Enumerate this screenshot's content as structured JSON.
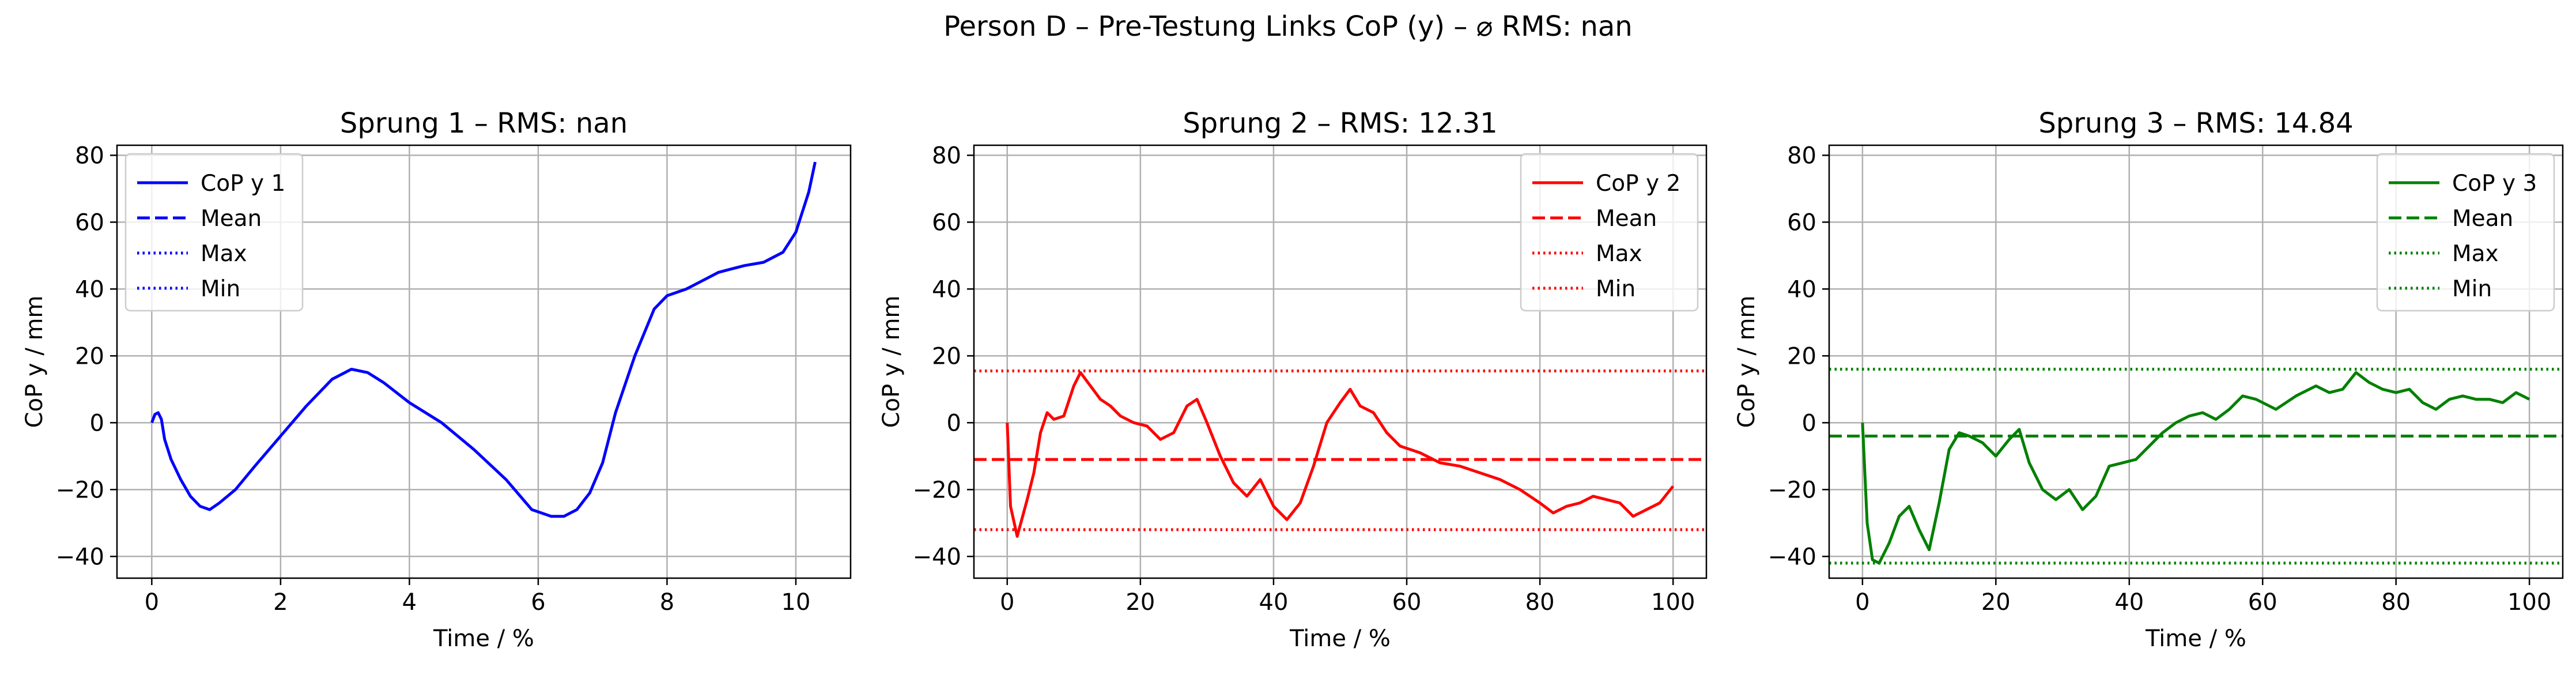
{
  "figure": {
    "title": "Person D – Pre-Testung Links CoP (y) – ⌀ RMS: nan"
  },
  "chart_data": [
    {
      "type": "line",
      "title": "Sprung 1 – RMS: nan",
      "xlabel": "Time / %",
      "ylabel": "CoP y / mm",
      "xlim": [
        -0.54,
        10.85
      ],
      "ylim": [
        -46.5,
        83
      ],
      "xticks": [
        0,
        2,
        4,
        6,
        8,
        10
      ],
      "yticks": [
        -40,
        -20,
        0,
        20,
        40,
        60,
        80
      ],
      "grid": true,
      "legend_position": "upper-left",
      "color": "#0000ff",
      "legend": [
        "CoP y 1",
        "Mean",
        "Max",
        "Min"
      ],
      "mean": null,
      "max": null,
      "min": null,
      "series": [
        {
          "name": "CoP y 1",
          "x": [
            0,
            0.05,
            0.1,
            0.15,
            0.2,
            0.3,
            0.45,
            0.6,
            0.75,
            0.9,
            1.05,
            1.3,
            1.6,
            2.0,
            2.4,
            2.8,
            3.1,
            3.35,
            3.6,
            4.0,
            4.5,
            5.0,
            5.5,
            5.9,
            6.2,
            6.4,
            6.6,
            6.8,
            7.0,
            7.2,
            7.5,
            7.8,
            8.0,
            8.3,
            8.5,
            8.8,
            9.0,
            9.2,
            9.5,
            9.8,
            10.0,
            10.1,
            10.2,
            10.3
          ],
          "y": [
            0,
            2.5,
            3,
            1,
            -5,
            -11,
            -17,
            -22,
            -25,
            -26,
            -24,
            -20,
            -13,
            -4,
            5,
            13,
            16,
            15,
            12,
            6,
            0,
            -8,
            -17,
            -26,
            -28,
            -28,
            -26,
            -21,
            -12,
            3,
            20,
            34,
            38,
            40,
            42,
            45,
            46,
            47,
            48,
            51,
            57,
            63,
            69,
            78
          ]
        }
      ]
    },
    {
      "type": "line",
      "title": "Sprung 2 – RMS: 12.31",
      "xlabel": "Time / %",
      "ylabel": "CoP y / mm",
      "xlim": [
        -5,
        105
      ],
      "ylim": [
        -46.5,
        83
      ],
      "xticks": [
        0,
        20,
        40,
        60,
        80,
        100
      ],
      "yticks": [
        -40,
        -20,
        0,
        20,
        40,
        60,
        80
      ],
      "grid": true,
      "legend_position": "upper-right",
      "color": "#ff0000",
      "legend": [
        "CoP y 2",
        "Mean",
        "Max",
        "Min"
      ],
      "mean": -11,
      "max": 15.5,
      "min": -32,
      "series": [
        {
          "name": "CoP y 2",
          "x": [
            0,
            0.5,
            1.5,
            3,
            4,
            5,
            6,
            7,
            8.5,
            10,
            11,
            12.5,
            14,
            15.5,
            17,
            19,
            21,
            23,
            25,
            27,
            28.5,
            30,
            32,
            34,
            36,
            38,
            40,
            42,
            44,
            46,
            48,
            50,
            51.5,
            53,
            55,
            57,
            59,
            62,
            65,
            68,
            71,
            74,
            77,
            80,
            82,
            84,
            86,
            88,
            90,
            92,
            94,
            96,
            98,
            100
          ],
          "y": [
            0,
            -25,
            -34,
            -23,
            -15,
            -3,
            3,
            1,
            2,
            11,
            15,
            11,
            7,
            5,
            2,
            0,
            -1,
            -5,
            -3,
            5,
            7,
            0,
            -10,
            -18,
            -22,
            -17,
            -25,
            -29,
            -24,
            -13,
            0,
            6,
            10,
            5,
            3,
            -3,
            -7,
            -9,
            -12,
            -13,
            -15,
            -17,
            -20,
            -24,
            -27,
            -25,
            -24,
            -22,
            -23,
            -24,
            -28,
            -26,
            -24,
            -19
          ]
        }
      ]
    },
    {
      "type": "line",
      "title": "Sprung 3 – RMS: 14.84",
      "xlabel": "Time / %",
      "ylabel": "CoP y / mm",
      "xlim": [
        -5,
        105
      ],
      "ylim": [
        -46.5,
        83
      ],
      "xticks": [
        0,
        20,
        40,
        60,
        80,
        100
      ],
      "yticks": [
        -40,
        -20,
        0,
        20,
        40,
        60,
        80
      ],
      "grid": true,
      "legend_position": "upper-right",
      "color": "#008000",
      "legend": [
        "CoP y 3",
        "Mean",
        "Max",
        "Min"
      ],
      "mean": -4,
      "max": 16,
      "min": -42,
      "series": [
        {
          "name": "CoP y 3",
          "x": [
            0,
            0.7,
            1.5,
            2.5,
            4,
            5.5,
            7,
            8.5,
            10,
            11.5,
            13,
            14.5,
            16,
            18,
            20,
            22,
            23.5,
            25,
            27,
            29,
            31,
            33,
            35,
            37,
            39,
            41,
            43,
            45,
            47,
            49,
            51,
            53,
            55,
            57,
            59,
            62,
            65,
            68,
            70,
            72,
            74,
            76,
            78,
            80,
            82,
            84,
            86,
            88,
            90,
            92,
            94,
            96,
            98,
            100
          ],
          "y": [
            0,
            -30,
            -41,
            -42,
            -36,
            -28,
            -25,
            -32,
            -38,
            -24,
            -8,
            -3,
            -4,
            -6,
            -10,
            -5,
            -2,
            -12,
            -20,
            -23,
            -20,
            -26,
            -22,
            -13,
            -12,
            -11,
            -7,
            -3,
            0,
            2,
            3,
            1,
            4,
            8,
            7,
            4,
            8,
            11,
            9,
            10,
            15,
            12,
            10,
            9,
            10,
            6,
            4,
            7,
            8,
            7,
            7,
            6,
            9,
            7
          ]
        }
      ]
    }
  ]
}
